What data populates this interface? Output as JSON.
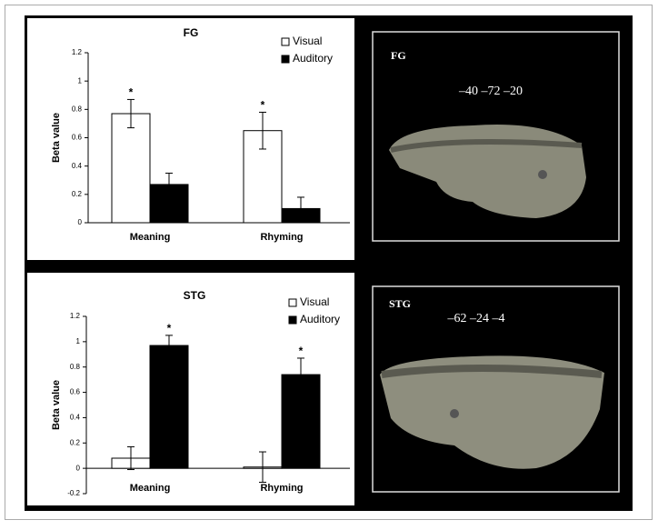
{
  "chart_data": [
    {
      "type": "bar",
      "title": "FG",
      "y_label": "Beta value",
      "categories": [
        "Meaning",
        "Rhyming"
      ],
      "series": [
        {
          "name": "Visual",
          "color": "#ffffff",
          "values": [
            0.77,
            0.65
          ],
          "errors": [
            0.1,
            0.13
          ],
          "markers": [
            "*",
            "*"
          ]
        },
        {
          "name": "Auditory",
          "color": "#000000",
          "values": [
            0.27,
            0.1
          ],
          "errors": [
            0.08,
            0.08
          ]
        }
      ],
      "ylim": [
        0,
        1.2
      ],
      "yticks": [
        0,
        0.2,
        0.4,
        0.6,
        0.8,
        1,
        1.2
      ],
      "legend": "upper right"
    },
    {
      "type": "bar",
      "title": "STG",
      "y_label": "Beta value",
      "categories": [
        "Meaning",
        "Rhyming"
      ],
      "series": [
        {
          "name": "Visual",
          "color": "#ffffff",
          "values": [
            0.08,
            0.01
          ],
          "errors": [
            0.09,
            0.12
          ]
        },
        {
          "name": "Auditory",
          "color": "#000000",
          "values": [
            0.97,
            0.74
          ],
          "errors": [
            0.08,
            0.13
          ],
          "markers": [
            "*",
            "*"
          ]
        }
      ],
      "ylim": [
        -0.2,
        1.2
      ],
      "yticks": [
        -0.2,
        0,
        0.2,
        0.4,
        0.6,
        0.8,
        1,
        1.2
      ],
      "legend": "upper right"
    }
  ],
  "brain_panels": [
    {
      "region": "FG",
      "coordinates": "–40 –72 –20"
    },
    {
      "region": "STG",
      "coordinates": "–62 –24 –4"
    }
  ]
}
